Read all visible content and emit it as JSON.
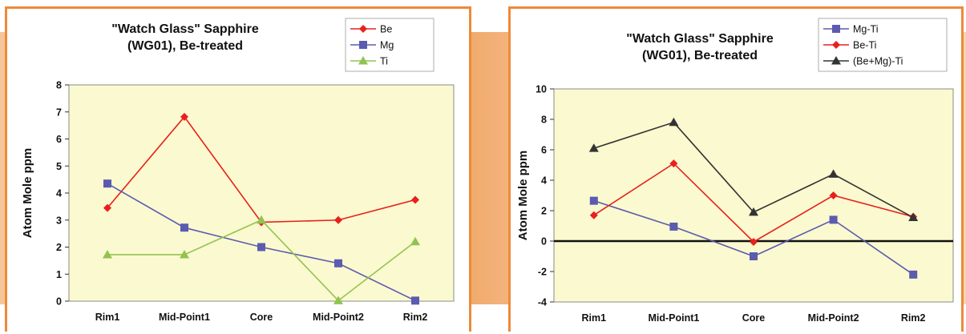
{
  "chart_data": [
    {
      "type": "line",
      "title": "\"Watch Glass\" Sapphire",
      "subtitle": "(WG01), Be-treated",
      "xlabel": "",
      "ylabel": "Atom Mole ppm",
      "categories": [
        "Rim1",
        "Mid-Point1",
        "Core",
        "Mid-Point2",
        "Rim2"
      ],
      "ylim": [
        0,
        8
      ],
      "yticks": [
        0,
        1,
        2,
        3,
        4,
        5,
        6,
        7,
        8
      ],
      "grid": false,
      "legend_position": "top-right",
      "series": [
        {
          "name": "Be",
          "color": "#e8201e",
          "marker": "diamond",
          "values": [
            3.45,
            6.82,
            2.92,
            3.0,
            3.75
          ]
        },
        {
          "name": "Mg",
          "color": "#5b5bb0",
          "marker": "square",
          "values": [
            4.35,
            2.72,
            2.0,
            1.4,
            0.02
          ]
        },
        {
          "name": "Ti",
          "color": "#92c352",
          "marker": "triangle",
          "values": [
            1.72,
            1.72,
            3.0,
            0.02,
            2.2
          ]
        }
      ]
    },
    {
      "type": "line",
      "title": "\"Watch Glass\" Sapphire",
      "subtitle": "(WG01), Be-treated",
      "xlabel": "",
      "ylabel": "Atom Mole ppm",
      "categories": [
        "Rim1",
        "Mid-Point1",
        "Core",
        "Mid-Point2",
        "Rim2"
      ],
      "ylim": [
        -4,
        10
      ],
      "yticks": [
        -4,
        -2,
        0,
        2,
        4,
        6,
        8,
        10
      ],
      "grid": false,
      "zero_line": true,
      "legend_position": "top-right",
      "series": [
        {
          "name": "Mg-Ti",
          "color": "#5b5bb0",
          "marker": "square",
          "values": [
            2.65,
            0.95,
            -1.0,
            1.4,
            -2.2
          ]
        },
        {
          "name": "Be-Ti",
          "color": "#e8201e",
          "marker": "diamond",
          "values": [
            1.7,
            5.1,
            -0.05,
            3.0,
            1.6
          ]
        },
        {
          "name": "(Be+Mg)-Ti",
          "color": "#333333",
          "marker": "triangle",
          "values": [
            6.1,
            7.8,
            1.9,
            4.4,
            1.55
          ]
        }
      ]
    }
  ]
}
